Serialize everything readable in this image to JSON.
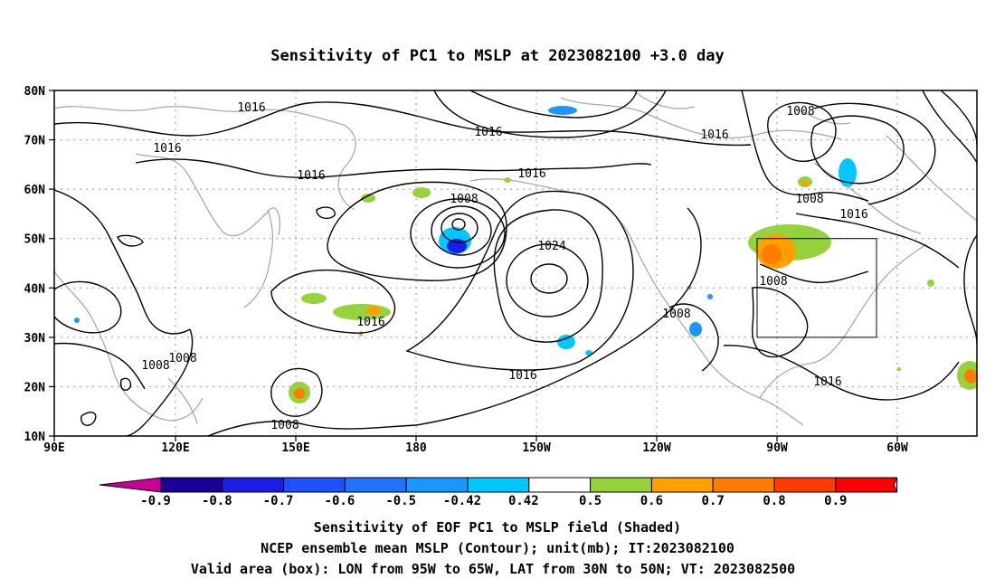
{
  "title": "Sensitivity of PC1 to MSLP at 2023082100 +3.0 day",
  "map": {
    "lon_ticks": [
      "90E",
      "120E",
      "150E",
      "180",
      "150W",
      "120W",
      "90W",
      "60W"
    ],
    "lat_ticks": [
      "80N",
      "70N",
      "60N",
      "50N",
      "40N",
      "30N",
      "20N",
      "10N"
    ],
    "contour_labels": [
      "1016",
      "1016",
      "1016",
      "1016",
      "1016",
      "1016",
      "1008",
      "1016",
      "1024",
      "1016",
      "1008",
      "1008",
      "1008",
      "1008",
      "1008",
      "1016",
      "1008",
      "1008",
      "1016"
    ],
    "valid_box": {
      "lon_from": "95W",
      "lon_to": "65W",
      "lat_from": "30N",
      "lat_to": "50N"
    }
  },
  "colorbar": {
    "labels": [
      "-0.9",
      "-0.8",
      "-0.7",
      "-0.6",
      "-0.5",
      "-0.42",
      "0.42",
      "0.5",
      "0.6",
      "0.7",
      "0.8",
      "0.9"
    ],
    "colors": [
      "#1a0096",
      "#1b1ee6",
      "#1f50ff",
      "#1f73ff",
      "#1c96ff",
      "#00c8ff",
      "#ffffff",
      "#96d23c",
      "#ffa000",
      "#ff7d00",
      "#ff3c00",
      "#ff0000"
    ],
    "end_low": "#c80096",
    "end_high": "#ff9ec8"
  },
  "caption": {
    "line1": "Sensitivity of EOF PC1 to MSLP field (Shaded)",
    "line2": "NCEP ensemble mean MSLP (Contour); unit(mb); IT:2023082100",
    "line3": "Valid area (box): LON from 95W to 65W, LAT from 30N to 50N; VT: 2023082500"
  }
}
